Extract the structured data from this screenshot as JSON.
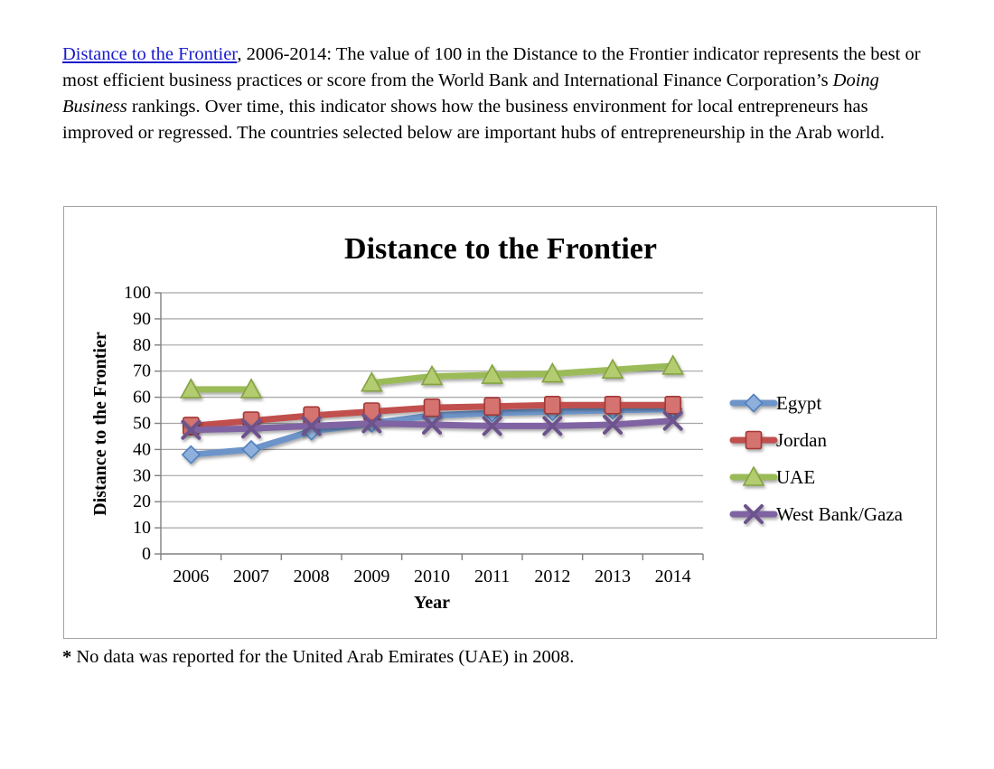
{
  "intro": {
    "link_text": "Distance to the Frontier",
    "link_color": "#1a1acd",
    "after_link": ", 2006-2014: The value of 100 in the Distance to the Frontier indicator represents the best or most efficient business practices or score from the World Bank and International Finance Corporation’s ",
    "italic_text": "Doing Business",
    "after_italic": " rankings. Over time, this indicator shows how the business environment for local entrepreneurs has improved or regressed. The countries selected below are important hubs of entrepreneurship in the Arab world."
  },
  "chart_data": {
    "type": "line",
    "title": "Distance to the Frontier",
    "xlabel": "Year",
    "ylabel": "Distance to the Frontier",
    "ylim": [
      0,
      100
    ],
    "ytick_step": 10,
    "grid": "horizontal",
    "grid_color": "#a6a6a6",
    "axis_color": "#808080",
    "legend_position": "right",
    "categories": [
      "2006",
      "2007",
      "2008",
      "2009",
      "2010",
      "2011",
      "2012",
      "2013",
      "2014"
    ],
    "series": [
      {
        "name": "Egypt",
        "color": "#6d94c9",
        "marker": "diamond",
        "marker_fill": "#8fafdc",
        "marker_stroke": "#4f81bd",
        "values": [
          38,
          40,
          47,
          50,
          53,
          54,
          54.5,
          55,
          55.5
        ]
      },
      {
        "name": "Jordan",
        "color": "#c0504d",
        "marker": "square",
        "marker_fill": "#d4736f",
        "marker_stroke": "#a33835",
        "values": [
          49,
          51,
          53,
          54.5,
          56,
          56.5,
          57,
          57,
          57
        ]
      },
      {
        "name": "UAE",
        "color": "#9bbb59",
        "marker": "triangle",
        "marker_fill": "#b3cc70",
        "marker_stroke": "#85a23f",
        "values": [
          63,
          63,
          null,
          65.5,
          68,
          68.5,
          69,
          70.5,
          72
        ]
      },
      {
        "name": "West Bank/Gaza",
        "color": "#8064a2",
        "marker": "x",
        "marker_fill": "#8064a2",
        "marker_stroke": "#6c538c",
        "values": [
          47.5,
          48,
          49,
          50,
          49.5,
          49,
          49,
          49.5,
          51
        ]
      }
    ]
  },
  "footnote": {
    "marker": "*",
    "text": " No data was reported for the United Arab Emirates (UAE) in 2008."
  }
}
